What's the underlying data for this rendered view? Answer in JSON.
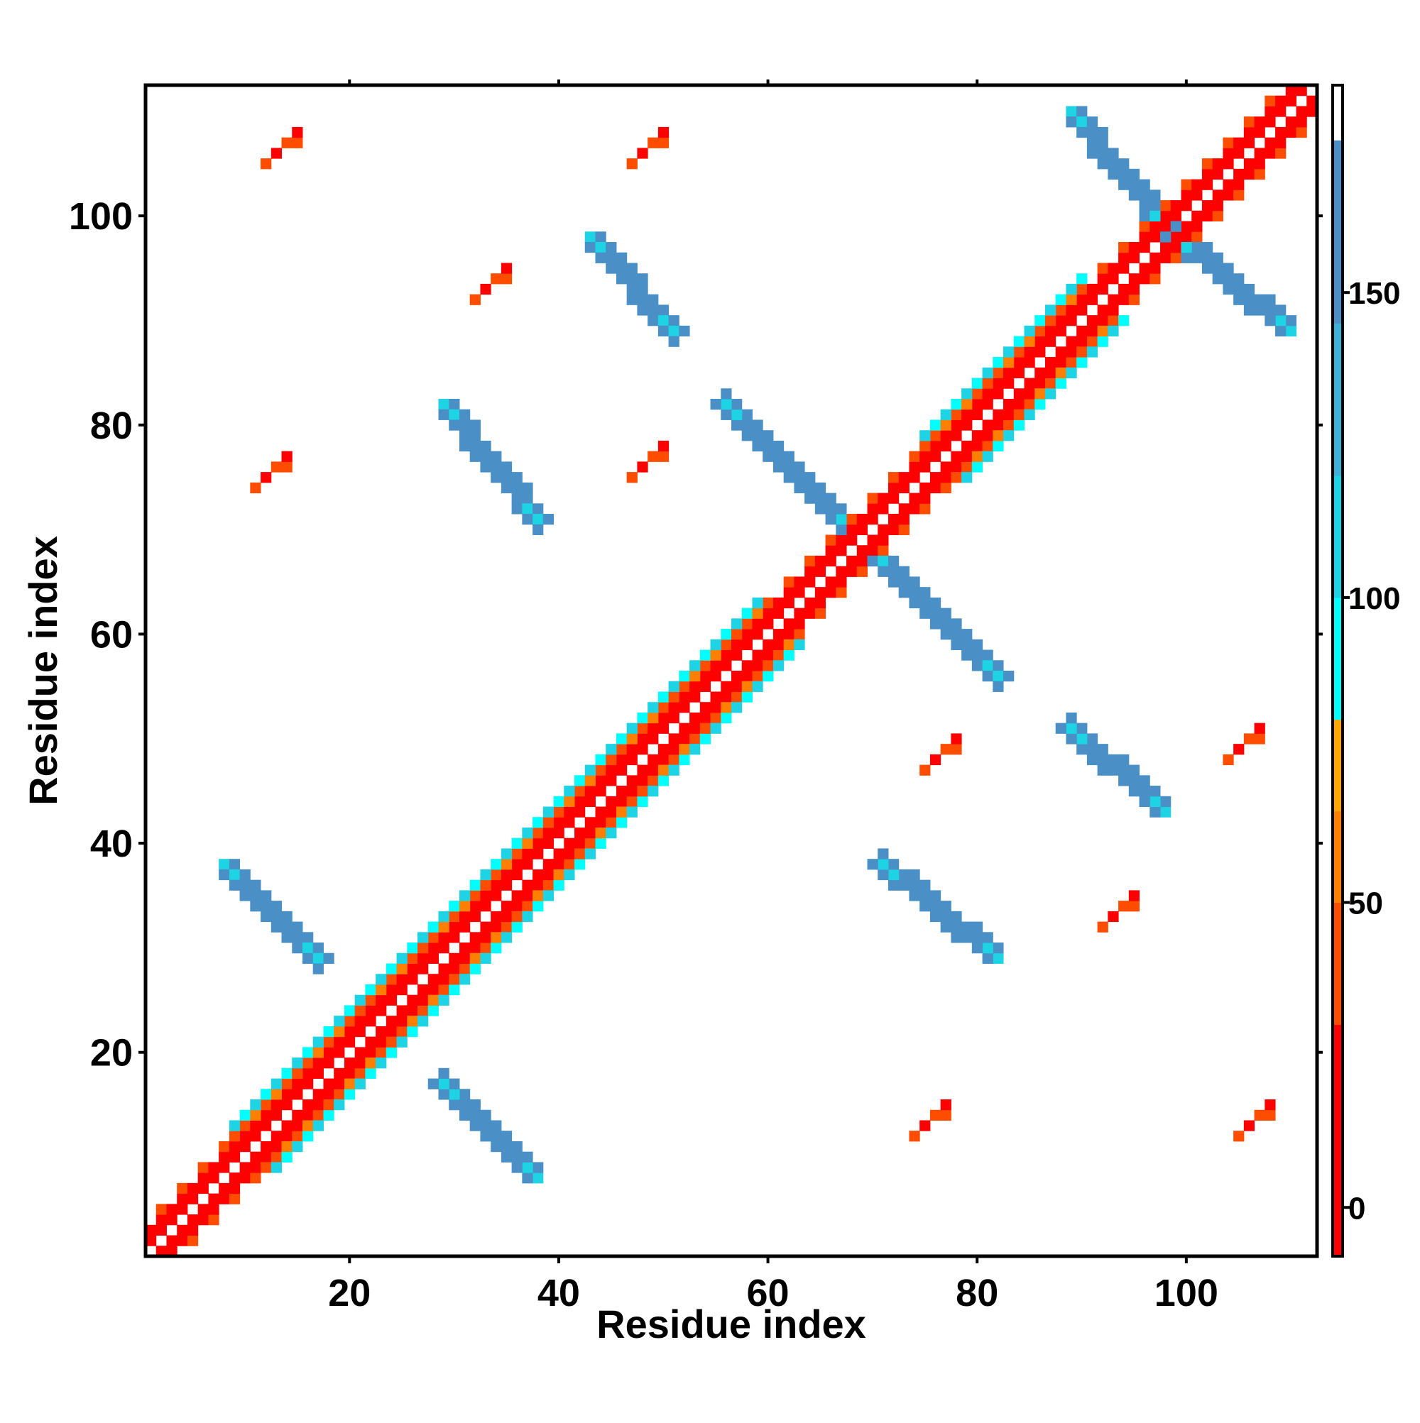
{
  "chart_data": {
    "type": "heatmap",
    "title": "",
    "xlabel": "Residue index",
    "ylabel": "Residue index",
    "xlim": [
      0.5,
      112.5
    ],
    "ylim": [
      0.5,
      112.5
    ],
    "x_ticks": [
      20,
      40,
      60,
      80,
      100
    ],
    "y_ticks": [
      20,
      40,
      60,
      80,
      100
    ],
    "x_tick_labels": [
      "20",
      "40",
      "60",
      "80",
      "100"
    ],
    "y_tick_labels": [
      "20",
      "40",
      "60",
      "80",
      "100"
    ],
    "grid": false,
    "colorbar": {
      "range": [
        -8,
        184
      ],
      "ticks": [
        0,
        50,
        100,
        150
      ],
      "tick_labels": [
        "0",
        "50",
        "100",
        "150"
      ],
      "placement": "right",
      "bands": [
        {
          "from": -8,
          "to": 30,
          "color": "#ff0000"
        },
        {
          "from": 30,
          "to": 50,
          "color": "#ff4d00"
        },
        {
          "from": 50,
          "to": 65,
          "color": "#ff7f00"
        },
        {
          "from": 65,
          "to": 80,
          "color": "#ffa500"
        },
        {
          "from": 80,
          "to": 100,
          "color": "#00ffff"
        },
        {
          "from": 100,
          "to": 120,
          "color": "#1ed3e3"
        },
        {
          "from": 120,
          "to": 145,
          "color": "#3fb0d8"
        },
        {
          "from": 145,
          "to": 175,
          "color": "#4a90c6"
        },
        {
          "from": 175,
          "to": 184,
          "color": "#ffffff"
        }
      ]
    },
    "features": [
      {
        "kind": "diagonal",
        "from": 1,
        "to": 112
      },
      {
        "kind": "helix",
        "from": 9,
        "to": 50
      },
      {
        "kind": "helix",
        "from": 51,
        "to": 59
      },
      {
        "kind": "helix",
        "from": 75,
        "to": 90
      },
      {
        "kind": "antiparallel",
        "a": [
          8,
          17
        ],
        "b": [
          29,
          38
        ]
      },
      {
        "kind": "antiparallel",
        "a": [
          8,
          17
        ],
        "b": [
          29,
          38
        ],
        "mirror": true
      },
      {
        "kind": "antiparallel",
        "a": [
          29,
          38
        ],
        "b": [
          71,
          82
        ]
      },
      {
        "kind": "antiparallel",
        "a": [
          29,
          38
        ],
        "b": [
          71,
          82
        ],
        "mirror": true
      },
      {
        "kind": "antiparallel",
        "a": [
          70,
          82
        ],
        "b": [
          56,
          68
        ]
      },
      {
        "kind": "antiparallel",
        "a": [
          70,
          82
        ],
        "b": [
          56,
          68
        ],
        "mirror": true
      },
      {
        "kind": "antiparallel",
        "a": [
          43,
          51
        ],
        "b": [
          89,
          98
        ]
      },
      {
        "kind": "antiparallel",
        "a": [
          43,
          51
        ],
        "b": [
          89,
          98
        ],
        "mirror": true
      },
      {
        "kind": "antiparallel",
        "a": [
          89,
          98
        ],
        "b": [
          99,
          110
        ]
      },
      {
        "kind": "antiparallel",
        "a": [
          89,
          98
        ],
        "b": [
          99,
          110
        ],
        "mirror": true
      },
      {
        "kind": "contact-pair",
        "x": 13,
        "y": 106
      },
      {
        "kind": "contact-pair",
        "x": 48,
        "y": 106
      },
      {
        "kind": "contact-pair",
        "x": 12,
        "y": 75
      },
      {
        "kind": "contact-pair",
        "x": 48,
        "y": 76
      },
      {
        "kind": "contact-pair",
        "x": 76,
        "y": 48
      },
      {
        "kind": "contact-pair",
        "x": 105,
        "y": 49
      },
      {
        "kind": "contact-pair",
        "x": 75,
        "y": 13
      },
      {
        "kind": "contact-pair",
        "x": 106,
        "y": 13
      },
      {
        "kind": "contact-pair",
        "x": 93,
        "y": 33
      },
      {
        "kind": "contact-pair",
        "x": 33,
        "y": 93
      }
    ]
  }
}
